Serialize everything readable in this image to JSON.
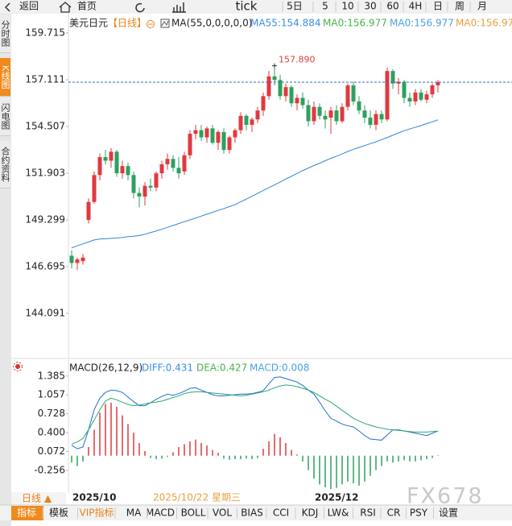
{
  "toolbar": {
    "back": "返回",
    "home": "首页",
    "items": [
      "tick",
      "5日",
      "5",
      "10",
      "30",
      "60",
      "4H",
      "日",
      "周",
      "月"
    ]
  },
  "side_tabs": [
    "分时图",
    "K线图",
    "闪电图",
    "合约资料"
  ],
  "chart_data": [
    {
      "type": "candlestick",
      "title": "美元日元",
      "period": "【日线】",
      "ma_setting": "MA(55,0,0,0,0,0)",
      "legend": [
        {
          "text": "MA55:154.884",
          "color": "#3a8ee6"
        },
        {
          "text": "MA0:156.977",
          "color": "#49b449"
        },
        {
          "text": "MA0:156.977",
          "color": "#4aa3df"
        },
        {
          "text": "MA0:156.97",
          "color": "#e8a040"
        }
      ],
      "high_annotation": "157.890",
      "up_color": "#e0393e",
      "down_color": "#2ea05f",
      "open": [
        147.3,
        146.9,
        147.0,
        149.3,
        150.3,
        151.8,
        152.8,
        152.6,
        153.1,
        151.9,
        152.3,
        151.8,
        150.8,
        150.6,
        151.2,
        151.1,
        151.9,
        152.4,
        152.7,
        152.2,
        152.0,
        152.9,
        154.1,
        154.3,
        153.9,
        154.4,
        153.6,
        154.2,
        153.2,
        153.9,
        154.3,
        155.1,
        154.6,
        154.9,
        155.4,
        156.2,
        157.3,
        157.1,
        156.2,
        156.7,
        155.8,
        156.1,
        155.7,
        154.8,
        155.6,
        155.1,
        155.0,
        155.4,
        154.8,
        155.6,
        156.8,
        155.9,
        155.4,
        155.0,
        154.6,
        155.2,
        154.9,
        157.6,
        156.9,
        157.0,
        156.1,
        155.9,
        156.4,
        156.0,
        156.3,
        156.8
      ],
      "high": [
        147.6,
        147.2,
        147.4,
        150.5,
        152.0,
        153.0,
        153.2,
        153.3,
        153.2,
        152.6,
        152.5,
        152.0,
        151.1,
        151.4,
        151.6,
        152.0,
        152.6,
        153.0,
        152.9,
        152.8,
        153.1,
        154.3,
        154.6,
        154.6,
        154.5,
        154.6,
        154.3,
        154.4,
        154.0,
        154.4,
        155.3,
        155.2,
        155.0,
        155.6,
        156.4,
        157.6,
        157.89,
        157.4,
        156.9,
        156.8,
        156.3,
        156.4,
        156.0,
        155.9,
        155.8,
        155.4,
        155.6,
        155.7,
        155.8,
        156.9,
        157.0,
        156.2,
        155.7,
        155.4,
        155.4,
        155.4,
        157.8,
        157.7,
        157.2,
        157.1,
        156.4,
        156.6,
        156.6,
        156.5,
        156.9,
        157.1
      ],
      "low": [
        146.6,
        146.5,
        146.8,
        149.1,
        150.2,
        151.5,
        152.4,
        152.2,
        151.7,
        151.6,
        151.5,
        150.5,
        150.0,
        150.1,
        150.9,
        150.9,
        151.6,
        152.1,
        152.0,
        151.6,
        151.8,
        152.7,
        153.8,
        153.7,
        153.6,
        153.5,
        153.2,
        153.0,
        153.0,
        153.6,
        154.1,
        154.3,
        154.2,
        154.7,
        155.1,
        156.0,
        156.8,
        156.0,
        155.9,
        155.6,
        155.4,
        155.5,
        154.5,
        154.6,
        154.9,
        154.4,
        154.1,
        154.6,
        154.7,
        155.4,
        155.7,
        155.2,
        154.7,
        154.4,
        154.3,
        154.7,
        154.8,
        156.6,
        156.3,
        155.8,
        155.6,
        155.7,
        155.9,
        155.8,
        156.1,
        156.4
      ],
      "close": [
        146.9,
        147.1,
        147.2,
        150.3,
        151.8,
        152.8,
        152.6,
        153.1,
        151.9,
        152.3,
        151.8,
        150.8,
        150.6,
        151.2,
        151.1,
        151.9,
        152.4,
        152.7,
        152.2,
        151.9,
        152.9,
        154.1,
        154.3,
        153.9,
        154.4,
        153.6,
        154.2,
        153.2,
        153.9,
        154.3,
        155.1,
        154.6,
        154.9,
        155.4,
        156.2,
        157.3,
        157.1,
        156.2,
        156.7,
        155.8,
        156.1,
        155.7,
        154.8,
        155.6,
        155.1,
        154.9,
        155.4,
        154.8,
        155.6,
        156.8,
        155.9,
        155.4,
        155.0,
        154.6,
        155.2,
        154.9,
        157.6,
        156.9,
        157.0,
        156.1,
        155.9,
        156.4,
        156.0,
        156.3,
        156.8,
        156.977
      ],
      "series": [
        {
          "color": "#2f86d8",
          "values": [
            147.74,
            147.86,
            147.96,
            148.07,
            148.18,
            148.23,
            148.25,
            148.27,
            148.29,
            148.32,
            148.36,
            148.39,
            148.43,
            148.5,
            148.59,
            148.68,
            148.78,
            148.88,
            148.99,
            149.09,
            149.2,
            149.3,
            149.4,
            149.51,
            149.62,
            149.72,
            149.83,
            149.93,
            150.04,
            150.15,
            150.31,
            150.46,
            150.62,
            150.78,
            150.94,
            151.1,
            151.25,
            151.41,
            151.58,
            151.73,
            151.89,
            152.05,
            152.19,
            152.33,
            152.46,
            152.6,
            152.73,
            152.85,
            152.98,
            153.11,
            153.23,
            153.34,
            153.44,
            153.55,
            153.65,
            153.77,
            153.89,
            154.02,
            154.15,
            154.27,
            154.37,
            154.46,
            154.56,
            154.67,
            154.77,
            154.88
          ]
        }
      ],
      "ylim": [
        141.8,
        160.66
      ],
      "yticks": [
        159.715,
        157.111,
        154.507,
        151.903,
        149.299,
        146.695,
        144.091
      ]
    },
    {
      "type": "macd",
      "title": "MACD(26,12,9)",
      "legend": [
        {
          "text": "DIFF:0.431",
          "color": "#3a8ee6"
        },
        {
          "text": "DEA:0.427",
          "color": "#49b449"
        },
        {
          "text": "MACD:0.008",
          "color": "#4aa3df"
        }
      ],
      "categories": [
        "2025/10",
        null,
        null,
        null,
        null,
        null,
        null,
        null,
        null,
        null,
        null,
        null,
        null,
        null,
        null,
        null,
        null,
        null,
        null,
        null,
        null,
        null,
        null,
        null,
        null,
        null,
        null,
        null,
        null,
        null,
        null,
        null,
        null,
        null,
        null,
        null,
        null,
        null,
        null,
        null,
        null,
        null,
        null,
        "2025/12",
        null,
        null,
        null,
        null,
        null,
        null,
        null,
        null,
        null,
        null,
        null,
        null,
        null,
        null,
        null,
        null,
        null,
        null,
        null,
        null,
        null,
        null
      ],
      "histogram": {
        "up_color": "#e0393e",
        "down_color": "#2ea05f",
        "values": [
          -0.12,
          -0.18,
          -0.1,
          0.15,
          0.45,
          0.75,
          0.9,
          0.92,
          0.85,
          0.7,
          0.55,
          0.4,
          0.22,
          0.08,
          -0.04,
          -0.06,
          -0.05,
          -0.02,
          0.06,
          0.15,
          0.2,
          0.25,
          0.28,
          0.22,
          0.18,
          0.1,
          0.05,
          -0.05,
          -0.07,
          -0.06,
          -0.06,
          -0.05,
          -0.06,
          -0.04,
          0.12,
          0.25,
          0.38,
          0.32,
          0.22,
          0.1,
          0.02,
          -0.1,
          -0.25,
          -0.4,
          -0.5,
          -0.55,
          -0.58,
          -0.56,
          -0.5,
          -0.45,
          -0.48,
          -0.52,
          -0.45,
          -0.35,
          -0.25,
          -0.18,
          -0.1,
          -0.12,
          -0.1,
          -0.08,
          -0.1,
          -0.1,
          -0.08,
          -0.06,
          -0.04,
          0.008
        ]
      },
      "series": [
        {
          "color": "#1f6fd0",
          "values": [
            0.18,
            0.12,
            0.15,
            0.45,
            0.8,
            1.0,
            1.1,
            1.14,
            1.13,
            1.1,
            1.02,
            0.94,
            0.87,
            0.87,
            0.92,
            0.98,
            1.03,
            1.07,
            1.05,
            1.08,
            1.12,
            1.17,
            1.18,
            1.14,
            1.1,
            1.06,
            1.04,
            1.04,
            1.05,
            1.06,
            1.07,
            1.07,
            1.08,
            1.1,
            1.13,
            1.25,
            1.36,
            1.37,
            1.34,
            1.31,
            1.28,
            1.22,
            1.14,
            1.07,
            0.93,
            0.78,
            0.65,
            0.6,
            0.55,
            0.52,
            0.5,
            0.43,
            0.35,
            0.29,
            0.28,
            0.27,
            0.36,
            0.45,
            0.45,
            0.43,
            0.41,
            0.39,
            0.37,
            0.35,
            0.39,
            0.431
          ]
        },
        {
          "color": "#2aa86a",
          "values": [
            0.2,
            0.24,
            0.3,
            0.45,
            0.62,
            0.8,
            0.95,
            1.0,
            0.97,
            0.93,
            0.89,
            0.87,
            0.88,
            0.9,
            0.92,
            0.93,
            0.95,
            0.98,
            1.01,
            1.04,
            1.08,
            1.1,
            1.11,
            1.11,
            1.1,
            1.09,
            1.08,
            1.07,
            1.06,
            1.05,
            1.04,
            1.05,
            1.07,
            1.09,
            1.11,
            1.14,
            1.18,
            1.21,
            1.23,
            1.22,
            1.2,
            1.17,
            1.14,
            1.1,
            1.04,
            0.98,
            0.93,
            0.86,
            0.79,
            0.72,
            0.65,
            0.6,
            0.56,
            0.53,
            0.5,
            0.48,
            0.46,
            0.45,
            0.44,
            0.43,
            0.42,
            0.41,
            0.41,
            0.41,
            0.42,
            0.427
          ]
        }
      ],
      "ylim": [
        -0.62,
        1.62
      ],
      "yticks": [
        1.385,
        1.057,
        0.728,
        {
          "value": 0.4,
          "label": "0.400"
        },
        0.072,
        -0.256
      ]
    }
  ],
  "footer": {
    "period": "日线 ▲",
    "cursor_date": "2025/10/22 星期三",
    "watermark": "FX678",
    "tabs": [
      "指标",
      "模板",
      "VIP指标",
      "MA",
      "MACD",
      "BOLL",
      "VOL",
      "BIAS",
      "CCI",
      "KDJ",
      "LW&",
      "RSI",
      "CR",
      "PSY",
      "设置"
    ]
  }
}
